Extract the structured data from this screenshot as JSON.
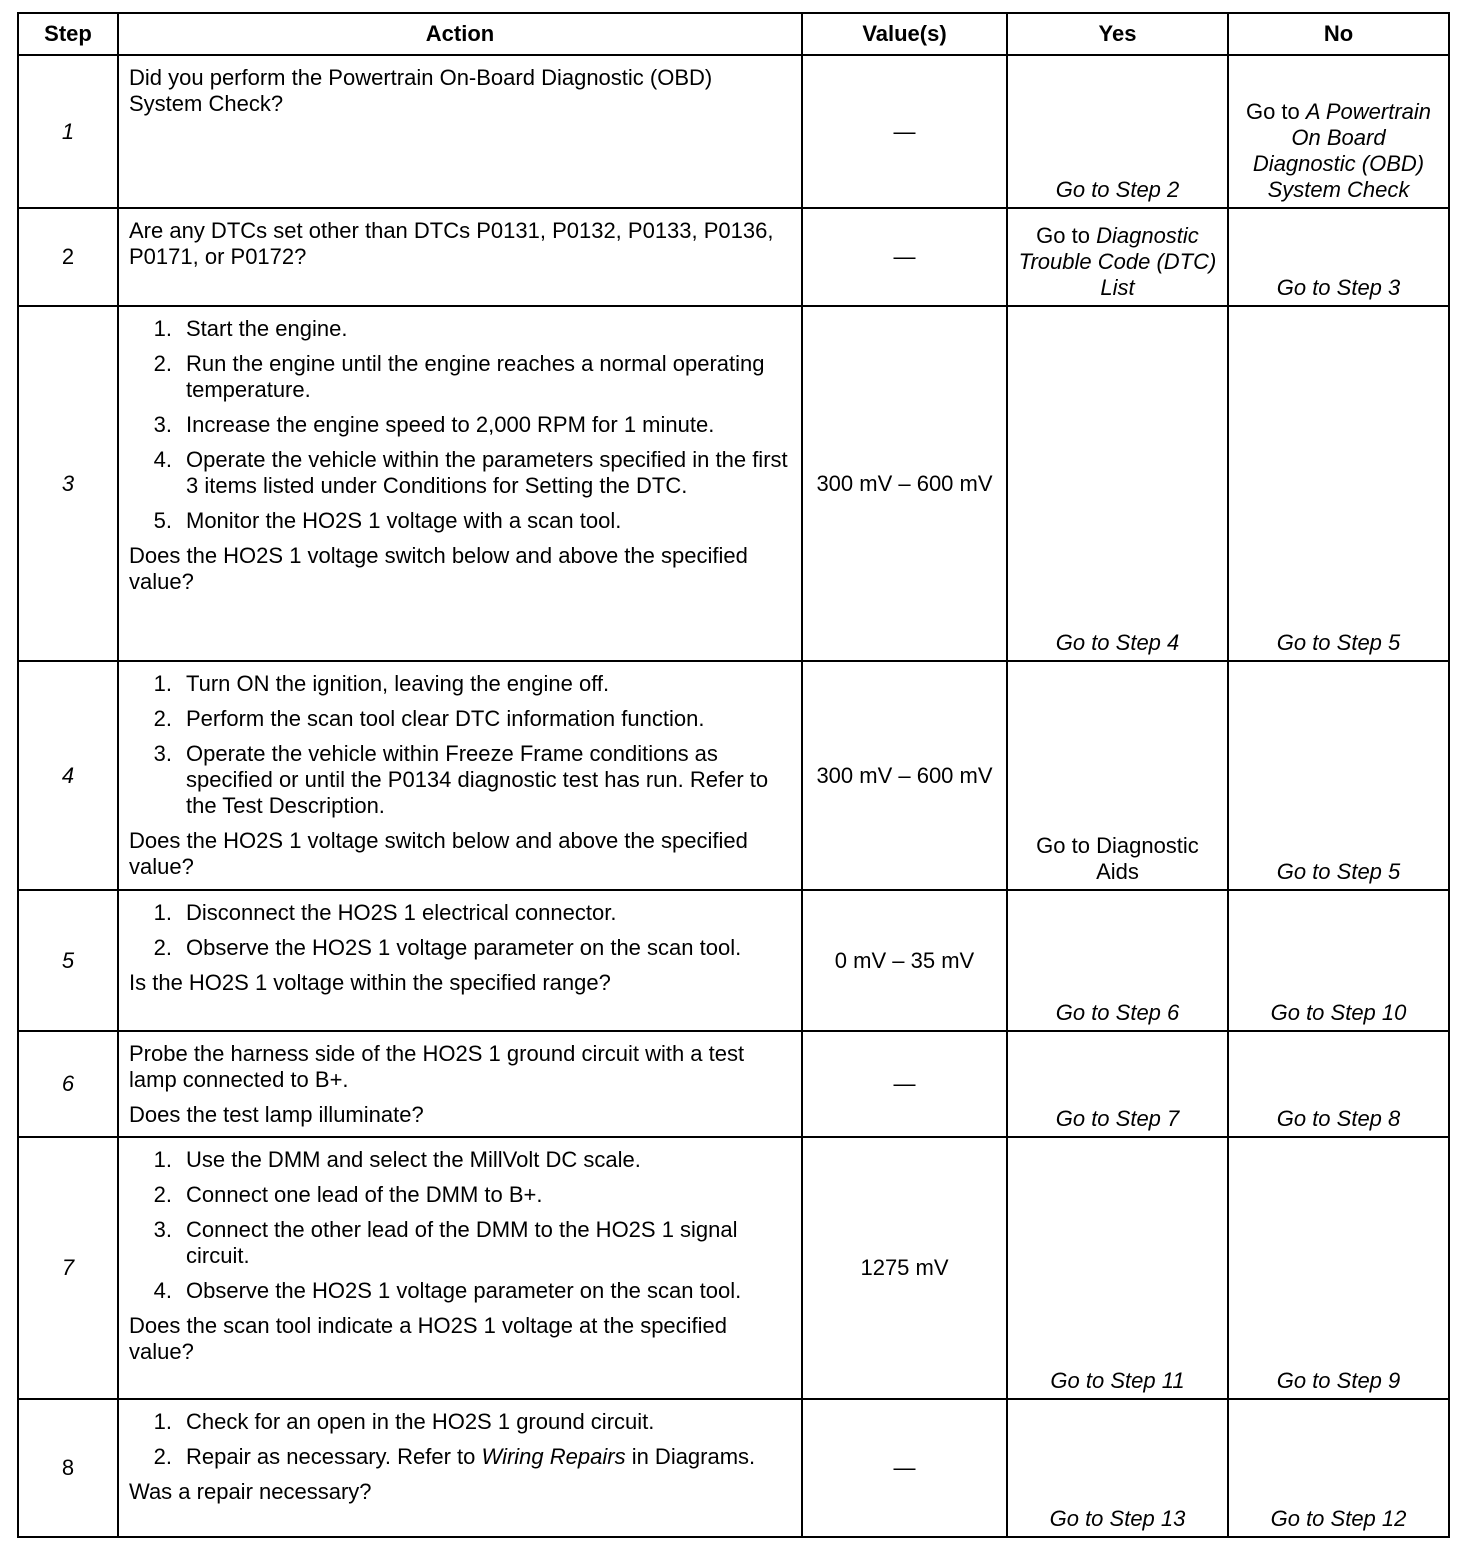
{
  "headers": [
    "Step",
    "Action",
    "Value(s)",
    "Yes",
    "No"
  ],
  "rows": [
    {
      "step": "1",
      "step_italic": true,
      "action": {
        "intro": [
          "Did you perform the Powertrain On-Board Diagnostic (OBD) System Check?"
        ],
        "items": [],
        "question": ""
      },
      "value": "—",
      "yes": [
        {
          "t": "Go to Step 2",
          "i": true
        }
      ],
      "no": [
        {
          "t": "Go to ",
          "i": false
        },
        {
          "t": "A Powertrain On Board Diagnostic (OBD) System Check",
          "i": true
        }
      ]
    },
    {
      "step": "2",
      "step_italic": false,
      "action": {
        "intro": [
          "Are any DTCs set other than DTCs P0131, P0132, P0133, P0136, P0171, or P0172?"
        ],
        "items": [],
        "question": ""
      },
      "value": "—",
      "yes": [
        {
          "t": "Go to ",
          "i": false
        },
        {
          "t": "Diagnostic Trouble Code (DTC) List",
          "i": true
        }
      ],
      "no": [
        {
          "t": "Go to Step 3",
          "i": true
        }
      ]
    },
    {
      "step": "3",
      "step_italic": true,
      "action": {
        "intro": [],
        "items": [
          [
            {
              "t": "Start the engine.",
              "i": false
            }
          ],
          [
            {
              "t": "Run the engine until the engine reaches a normal operating temperature.",
              "i": false
            }
          ],
          [
            {
              "t": "Increase the engine speed to 2,000 RPM for 1 minute.",
              "i": false
            }
          ],
          [
            {
              "t": "Operate the vehicle within the parameters specified in the first 3 items listed under Conditions for Setting the DTC.",
              "i": false
            }
          ],
          [
            {
              "t": "Monitor the HO2S 1 voltage with a scan tool.",
              "i": false
            }
          ]
        ],
        "question": "Does the HO2S 1 voltage switch below and above the specified value?"
      },
      "value": "300 mV – 600 mV",
      "yes": [
        {
          "t": "Go to Step 4",
          "i": true
        }
      ],
      "no": [
        {
          "t": "Go to Step 5",
          "i": true
        }
      ]
    },
    {
      "step": "4",
      "step_italic": true,
      "action": {
        "intro": [],
        "items": [
          [
            {
              "t": "Turn ON the ignition, leaving the engine off.",
              "i": false
            }
          ],
          [
            {
              "t": "Perform the scan tool clear DTC information function.",
              "i": false
            }
          ],
          [
            {
              "t": "Operate the vehicle within Freeze Frame conditions as specified or until the P0134 diagnostic test has run. Refer to the Test Description.",
              "i": false
            }
          ]
        ],
        "question": "Does the HO2S 1 voltage switch below and above the specified value?"
      },
      "value": "300 mV – 600 mV",
      "yes": [
        {
          "t": "Go to Diagnostic Aids",
          "i": false
        }
      ],
      "no": [
        {
          "t": "Go to Step 5",
          "i": true
        }
      ]
    },
    {
      "step": "5",
      "step_italic": true,
      "action": {
        "intro": [],
        "items": [
          [
            {
              "t": "Disconnect the HO2S 1 electrical connector.",
              "i": false
            }
          ],
          [
            {
              "t": "Observe the HO2S 1 voltage parameter on the scan tool.",
              "i": false
            }
          ]
        ],
        "question": "Is the HO2S 1 voltage within the specified range?"
      },
      "value": "0 mV – 35 mV",
      "yes": [
        {
          "t": "Go to Step 6",
          "i": true
        }
      ],
      "no": [
        {
          "t": "Go to Step 10",
          "i": true
        }
      ]
    },
    {
      "step": "6",
      "step_italic": true,
      "action": {
        "intro": [
          "Probe the harness side of the HO2S 1 ground circuit with a test lamp connected to B+."
        ],
        "items": [],
        "question": "Does the test lamp illuminate?"
      },
      "value": "—",
      "yes": [
        {
          "t": "Go to Step 7",
          "i": true
        }
      ],
      "no": [
        {
          "t": "Go to Step 8",
          "i": true
        }
      ]
    },
    {
      "step": "7",
      "step_italic": true,
      "action": {
        "intro": [],
        "items": [
          [
            {
              "t": "Use the DMM and select the MillVolt DC scale.",
              "i": false
            }
          ],
          [
            {
              "t": "Connect one lead of the DMM to B+.",
              "i": false
            }
          ],
          [
            {
              "t": "Connect the other lead of the DMM to the HO2S 1 signal circuit.",
              "i": false
            }
          ],
          [
            {
              "t": "Observe the HO2S 1 voltage parameter on the scan tool.",
              "i": false
            }
          ]
        ],
        "question": "Does the scan tool indicate a HO2S 1 voltage at the specified value?"
      },
      "value": "1275 mV",
      "yes": [
        {
          "t": "Go to Step 11",
          "i": true
        }
      ],
      "no": [
        {
          "t": "Go to Step 9",
          "i": true
        }
      ]
    },
    {
      "step": "8",
      "step_italic": false,
      "action": {
        "intro": [],
        "items": [
          [
            {
              "t": "Check for an open in the HO2S 1 ground circuit.",
              "i": false
            }
          ],
          [
            {
              "t": "Repair as necessary. Refer to ",
              "i": false
            },
            {
              "t": "Wiring Repairs",
              "i": true
            },
            {
              "t": " in Diagrams.",
              "i": false
            }
          ]
        ],
        "question": "Was a repair necessary?"
      },
      "value": "—",
      "yes": [
        {
          "t": "Go to Step 13",
          "i": true
        }
      ],
      "no": [
        {
          "t": "Go to Step 12",
          "i": true
        }
      ]
    }
  ]
}
